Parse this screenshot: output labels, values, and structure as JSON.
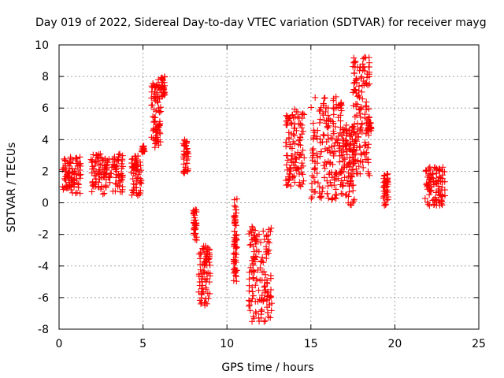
{
  "chart_data": {
    "type": "scatter",
    "title": "Day 019 of 2022, Sidereal Day-to-day VTEC variation (SDTVAR) for receiver mayg",
    "xlabel": "GPS time / hours",
    "ylabel": "SDTVAR / TECUs",
    "xlim": [
      0,
      25
    ],
    "ylim": [
      -8,
      10
    ],
    "xticks": [
      0,
      5,
      10,
      15,
      20,
      25
    ],
    "yticks": [
      -8,
      -6,
      -4,
      -2,
      0,
      2,
      4,
      6,
      8,
      10
    ],
    "grid": true,
    "marker": "+",
    "color": "#ff0000",
    "series": [
      {
        "name": "SDTVAR",
        "clusters": [
          {
            "x": [
              0.2,
              1.3
            ],
            "y": [
              0.6,
              2.9
            ]
          },
          {
            "x": [
              1.9,
              3.8
            ],
            "y": [
              0.5,
              3.1
            ]
          },
          {
            "x": [
              4.3,
              4.9
            ],
            "y": [
              0.4,
              3.0
            ]
          },
          {
            "x": [
              4.9,
              5.1
            ],
            "y": [
              3.2,
              3.6
            ]
          },
          {
            "x": [
              5.5,
              6.1
            ],
            "y": [
              3.5,
              8.0
            ]
          },
          {
            "x": [
              6.1,
              6.3
            ],
            "y": [
              6.4,
              8.0
            ]
          },
          {
            "x": [
              7.4,
              7.7
            ],
            "y": [
              1.8,
              4.0
            ]
          },
          {
            "x": [
              8.0,
              8.2
            ],
            "y": [
              -2.4,
              -0.4
            ]
          },
          {
            "x": [
              8.3,
              9.0
            ],
            "y": [
              -6.5,
              -2.7
            ]
          },
          {
            "x": [
              10.4,
              10.6
            ],
            "y": [
              -5.0,
              0.3
            ]
          },
          {
            "x": [
              11.3,
              12.7
            ],
            "y": [
              -7.6,
              -1.5
            ]
          },
          {
            "x": [
              13.5,
              14.6
            ],
            "y": [
              1.0,
              6.0
            ]
          },
          {
            "x": [
              15.0,
              16.9
            ],
            "y": [
              0.2,
              6.8
            ]
          },
          {
            "x": [
              16.9,
              17.6
            ],
            "y": [
              -0.3,
              5.0
            ]
          },
          {
            "x": [
              17.5,
              18.5
            ],
            "y": [
              1.5,
              9.4
            ]
          },
          {
            "x": [
              18.3,
              18.6
            ],
            "y": [
              4.5,
              5.1
            ]
          },
          {
            "x": [
              19.3,
              19.6
            ],
            "y": [
              -0.2,
              1.9
            ]
          },
          {
            "x": [
              21.8,
              23.0
            ],
            "y": [
              -0.2,
              2.3
            ]
          }
        ]
      }
    ]
  }
}
